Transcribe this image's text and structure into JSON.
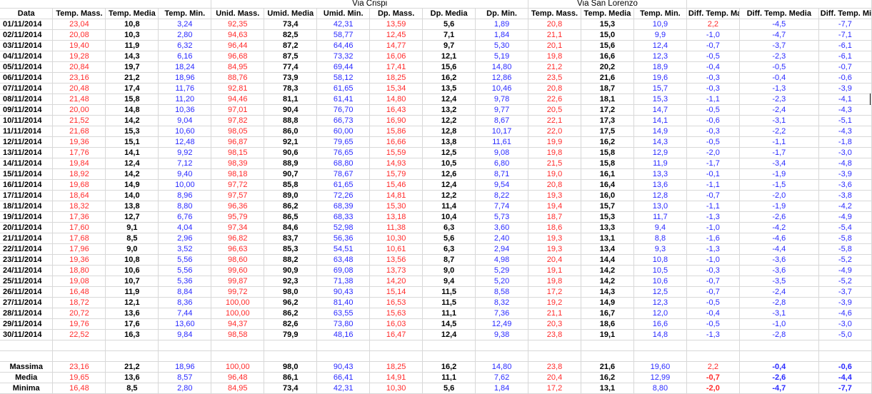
{
  "groups": {
    "blank_label": "",
    "via_crispi": "Via Crispi",
    "via_san_lorenzo": "Via San Lorenzo"
  },
  "headers": [
    "Data",
    "Temp. Mass.",
    "Temp. Media",
    "Temp. Min.",
    "Unid. Mass.",
    "Umid. Media",
    "Umid. Min.",
    "Dp. Mass.",
    "Dp. Media",
    "Dp. Min.",
    "Temp. Mass.",
    "Temp. Media",
    "Temp. Min.",
    "Diff. Temp. Mass.",
    "Diff. Temp. Media",
    "Diff. Temp. Min."
  ],
  "rows": [
    [
      "01/11/2014",
      "23,04",
      "10,8",
      "3,24",
      "92,35",
      "73,4",
      "42,31",
      "13,59",
      "5,6",
      "1,89",
      "20,8",
      "15,3",
      "10,9",
      "2,2",
      "-4,5",
      "-7,7"
    ],
    [
      "02/11/2014",
      "20,08",
      "10,3",
      "2,80",
      "94,63",
      "82,5",
      "58,77",
      "12,45",
      "7,1",
      "1,84",
      "21,1",
      "15,0",
      "9,9",
      "-1,0",
      "-4,7",
      "-7,1"
    ],
    [
      "03/11/2014",
      "19,40",
      "11,9",
      "6,32",
      "96,44",
      "87,2",
      "64,46",
      "14,77",
      "9,7",
      "5,30",
      "20,1",
      "15,6",
      "12,4",
      "-0,7",
      "-3,7",
      "-6,1"
    ],
    [
      "04/11/2014",
      "19,28",
      "14,3",
      "6,16",
      "96,68",
      "87,5",
      "73,32",
      "16,06",
      "12,1",
      "5,19",
      "19,8",
      "16,6",
      "12,3",
      "-0,5",
      "-2,3",
      "-6,1"
    ],
    [
      "05/11/2014",
      "20,84",
      "19,7",
      "18,24",
      "84,95",
      "77,4",
      "69,44",
      "17,41",
      "15,6",
      "14,80",
      "21,2",
      "20,2",
      "18,9",
      "-0,4",
      "-0,5",
      "-0,7"
    ],
    [
      "06/11/2014",
      "23,16",
      "21,2",
      "18,96",
      "88,76",
      "73,9",
      "58,12",
      "18,25",
      "16,2",
      "12,86",
      "23,5",
      "21,6",
      "19,6",
      "-0,3",
      "-0,4",
      "-0,6"
    ],
    [
      "07/11/2014",
      "20,48",
      "17,4",
      "11,76",
      "92,81",
      "78,3",
      "61,65",
      "15,34",
      "13,5",
      "10,46",
      "20,8",
      "18,7",
      "15,7",
      "-0,3",
      "-1,3",
      "-3,9"
    ],
    [
      "08/11/2014",
      "21,48",
      "15,8",
      "11,20",
      "94,46",
      "81,1",
      "61,41",
      "14,80",
      "12,4",
      "9,78",
      "22,6",
      "18,1",
      "15,3",
      "-1,1",
      "-2,3",
      "-4,1"
    ],
    [
      "09/11/2014",
      "20,00",
      "14,8",
      "10,36",
      "97,01",
      "90,4",
      "76,70",
      "16,43",
      "13,2",
      "9,77",
      "20,5",
      "17,2",
      "14,7",
      "-0,5",
      "-2,4",
      "-4,3"
    ],
    [
      "10/11/2014",
      "21,52",
      "14,2",
      "9,04",
      "97,82",
      "88,8",
      "66,73",
      "16,90",
      "12,2",
      "8,67",
      "22,1",
      "17,3",
      "14,1",
      "-0,6",
      "-3,1",
      "-5,1"
    ],
    [
      "11/11/2014",
      "21,68",
      "15,3",
      "10,60",
      "98,05",
      "86,0",
      "60,00",
      "15,86",
      "12,8",
      "10,17",
      "22,0",
      "17,5",
      "14,9",
      "-0,3",
      "-2,2",
      "-4,3"
    ],
    [
      "12/11/2014",
      "19,36",
      "15,1",
      "12,48",
      "96,87",
      "92,1",
      "79,65",
      "16,66",
      "13,8",
      "11,61",
      "19,9",
      "16,2",
      "14,3",
      "-0,5",
      "-1,1",
      "-1,8"
    ],
    [
      "13/11/2014",
      "17,76",
      "14,1",
      "9,92",
      "98,15",
      "90,6",
      "76,65",
      "15,59",
      "12,5",
      "9,08",
      "19,8",
      "15,8",
      "12,9",
      "-2,0",
      "-1,7",
      "-3,0"
    ],
    [
      "14/11/2014",
      "19,84",
      "12,4",
      "7,12",
      "98,39",
      "88,9",
      "68,80",
      "14,93",
      "10,5",
      "6,80",
      "21,5",
      "15,8",
      "11,9",
      "-1,7",
      "-3,4",
      "-4,8"
    ],
    [
      "15/11/2014",
      "18,92",
      "14,2",
      "9,40",
      "98,18",
      "90,7",
      "78,67",
      "15,79",
      "12,6",
      "8,71",
      "19,0",
      "16,1",
      "13,3",
      "-0,1",
      "-1,9",
      "-3,9"
    ],
    [
      "16/11/2014",
      "19,68",
      "14,9",
      "10,00",
      "97,72",
      "85,8",
      "61,65",
      "15,46",
      "12,4",
      "9,54",
      "20,8",
      "16,4",
      "13,6",
      "-1,1",
      "-1,5",
      "-3,6"
    ],
    [
      "17/11/2014",
      "18,64",
      "14,0",
      "8,96",
      "97,57",
      "89,0",
      "72,26",
      "14,81",
      "12,2",
      "8,22",
      "19,3",
      "16,0",
      "12,8",
      "-0,7",
      "-2,0",
      "-3,8"
    ],
    [
      "18/11/2014",
      "18,32",
      "13,8",
      "8,80",
      "96,36",
      "86,2",
      "68,39",
      "15,30",
      "11,4",
      "7,74",
      "19,4",
      "15,7",
      "13,0",
      "-1,1",
      "-1,9",
      "-4,2"
    ],
    [
      "19/11/2014",
      "17,36",
      "12,7",
      "6,76",
      "95,79",
      "86,5",
      "68,33",
      "13,18",
      "10,4",
      "5,73",
      "18,7",
      "15,3",
      "11,7",
      "-1,3",
      "-2,6",
      "-4,9"
    ],
    [
      "20/11/2014",
      "17,60",
      "9,1",
      "4,04",
      "97,34",
      "84,6",
      "52,98",
      "11,38",
      "6,3",
      "3,60",
      "18,6",
      "13,3",
      "9,4",
      "-1,0",
      "-4,2",
      "-5,4"
    ],
    [
      "21/11/2014",
      "17,68",
      "8,5",
      "2,96",
      "96,82",
      "83,7",
      "56,36",
      "10,30",
      "5,6",
      "2,40",
      "19,3",
      "13,1",
      "8,8",
      "-1,6",
      "-4,6",
      "-5,8"
    ],
    [
      "22/11/2014",
      "17,96",
      "9,0",
      "3,52",
      "96,63",
      "85,3",
      "54,51",
      "10,61",
      "6,3",
      "2,94",
      "19,3",
      "13,4",
      "9,3",
      "-1,3",
      "-4,4",
      "-5,8"
    ],
    [
      "23/11/2014",
      "19,36",
      "10,8",
      "5,56",
      "98,60",
      "88,2",
      "63,48",
      "13,56",
      "8,7",
      "4,98",
      "20,4",
      "14,4",
      "10,8",
      "-1,0",
      "-3,6",
      "-5,2"
    ],
    [
      "24/11/2014",
      "18,80",
      "10,6",
      "5,56",
      "99,60",
      "90,9",
      "69,08",
      "13,73",
      "9,0",
      "5,29",
      "19,1",
      "14,2",
      "10,5",
      "-0,3",
      "-3,6",
      "-4,9"
    ],
    [
      "25/11/2014",
      "19,08",
      "10,7",
      "5,36",
      "99,87",
      "92,3",
      "71,38",
      "14,20",
      "9,4",
      "5,20",
      "19,8",
      "14,2",
      "10,6",
      "-0,7",
      "-3,5",
      "-5,2"
    ],
    [
      "26/11/2014",
      "16,48",
      "11,9",
      "8,84",
      "99,72",
      "98,0",
      "90,43",
      "15,14",
      "11,5",
      "8,58",
      "17,2",
      "14,3",
      "12,5",
      "-0,7",
      "-2,4",
      "-3,7"
    ],
    [
      "27/11/2014",
      "18,72",
      "12,1",
      "8,36",
      "100,00",
      "96,2",
      "81,40",
      "16,53",
      "11,5",
      "8,32",
      "19,2",
      "14,9",
      "12,3",
      "-0,5",
      "-2,8",
      "-3,9"
    ],
    [
      "28/11/2014",
      "20,72",
      "13,6",
      "7,44",
      "100,00",
      "86,2",
      "63,55",
      "15,63",
      "11,1",
      "7,36",
      "21,1",
      "16,7",
      "12,0",
      "-0,4",
      "-3,1",
      "-4,6"
    ],
    [
      "29/11/2014",
      "19,76",
      "17,6",
      "13,60",
      "94,37",
      "82,6",
      "73,80",
      "16,03",
      "14,5",
      "12,49",
      "20,3",
      "18,6",
      "16,6",
      "-0,5",
      "-1,0",
      "-3,0"
    ],
    [
      "30/11/2014",
      "22,52",
      "16,3",
      "9,84",
      "98,58",
      "79,9",
      "48,16",
      "16,47",
      "12,4",
      "9,38",
      "23,8",
      "19,1",
      "14,8",
      "-1,3",
      "-2,8",
      "-5,0"
    ]
  ],
  "summary": [
    [
      "Massima",
      "23,16",
      "21,2",
      "18,96",
      "100,00",
      "98,0",
      "90,43",
      "18,25",
      "16,2",
      "14,80",
      "23,8",
      "21,6",
      "19,60",
      "2,2",
      "-0,4",
      "-0,6"
    ],
    [
      "Media",
      "19,65",
      "13,6",
      "8,57",
      "96,48",
      "86,1",
      "66,41",
      "14,91",
      "11,1",
      "7,62",
      "20,4",
      "16,2",
      "12,99",
      "-0,7",
      "-2,6",
      "-4,4"
    ],
    [
      "Minima",
      "16,48",
      "8,5",
      "2,80",
      "84,95",
      "73,4",
      "42,31",
      "10,30",
      "5,6",
      "1,84",
      "17,2",
      "13,1",
      "8,80",
      "-2,0",
      "-4,7",
      "-7,7"
    ]
  ],
  "colors": {
    "red": "#ff2a2a",
    "blue": "#2a2aff",
    "black": "#000000",
    "grid": "#d8d8d8"
  }
}
